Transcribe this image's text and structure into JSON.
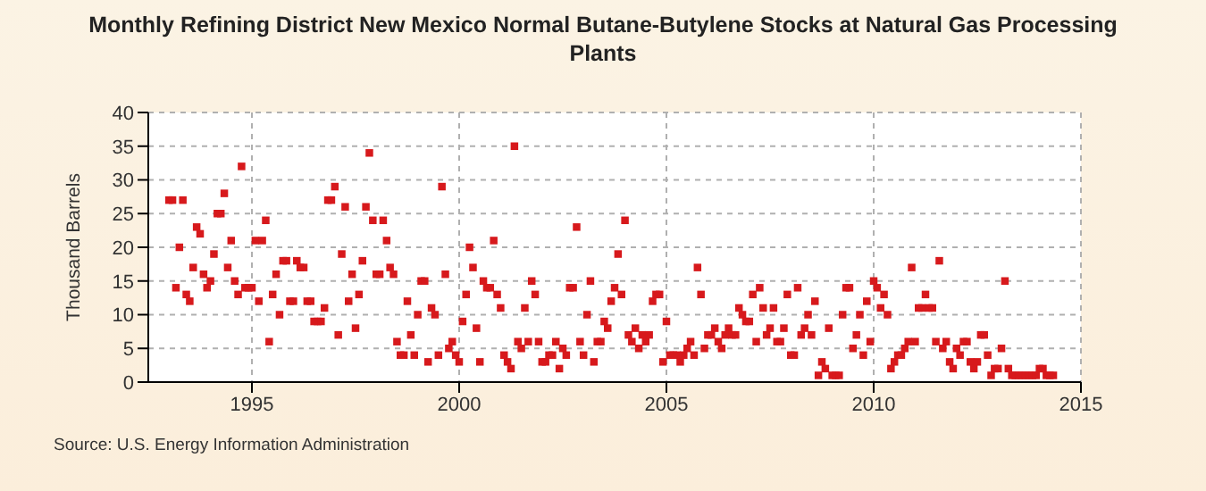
{
  "chart_data": {
    "type": "scatter",
    "title": "Monthly Refining District New Mexico Normal Butane-Butylene Stocks at Natural Gas Processing Plants",
    "ylabel": "Thousand Barrels",
    "annotations": [
      "Source: U.S. Energy Information Administration"
    ],
    "x": [
      "1993-01",
      "1993-02",
      "1993-03",
      "1993-04",
      "1993-05",
      "1993-06",
      "1993-07",
      "1993-08",
      "1993-09",
      "1993-10",
      "1993-11",
      "1993-12",
      "1994-01",
      "1994-02",
      "1994-03",
      "1994-04",
      "1994-05",
      "1994-06",
      "1994-07",
      "1994-08",
      "1994-09",
      "1994-10",
      "1994-11",
      "1994-12",
      "1995-01",
      "1995-02",
      "1995-03",
      "1995-04",
      "1995-05",
      "1995-06",
      "1995-07",
      "1995-08",
      "1995-09",
      "1995-10",
      "1995-11",
      "1995-12",
      "1996-01",
      "1996-02",
      "1996-03",
      "1996-04",
      "1996-05",
      "1996-06",
      "1996-07",
      "1996-08",
      "1996-09",
      "1996-10",
      "1996-11",
      "1996-12",
      "1997-01",
      "1997-02",
      "1997-03",
      "1997-04",
      "1997-05",
      "1997-06",
      "1997-07",
      "1997-08",
      "1997-09",
      "1997-10",
      "1997-11",
      "1997-12",
      "1998-01",
      "1998-02",
      "1998-03",
      "1998-04",
      "1998-05",
      "1998-06",
      "1998-07",
      "1998-08",
      "1998-09",
      "1998-10",
      "1998-11",
      "1998-12",
      "1999-01",
      "1999-02",
      "1999-03",
      "1999-04",
      "1999-05",
      "1999-06",
      "1999-07",
      "1999-08",
      "1999-09",
      "1999-10",
      "1999-11",
      "1999-12",
      "2000-01",
      "2000-02",
      "2000-03",
      "2000-04",
      "2000-05",
      "2000-06",
      "2000-07",
      "2000-08",
      "2000-09",
      "2000-10",
      "2000-11",
      "2000-12",
      "2001-01",
      "2001-02",
      "2001-03",
      "2001-04",
      "2001-05",
      "2001-06",
      "2001-07",
      "2001-08",
      "2001-09",
      "2001-10",
      "2001-11",
      "2001-12",
      "2002-01",
      "2002-02",
      "2002-03",
      "2002-04",
      "2002-05",
      "2002-06",
      "2002-07",
      "2002-08",
      "2002-09",
      "2002-10",
      "2002-11",
      "2002-12",
      "2003-01",
      "2003-02",
      "2003-03",
      "2003-04",
      "2003-05",
      "2003-06",
      "2003-07",
      "2003-08",
      "2003-09",
      "2003-10",
      "2003-11",
      "2003-12",
      "2004-01",
      "2004-02",
      "2004-03",
      "2004-04",
      "2004-05",
      "2004-06",
      "2004-07",
      "2004-08",
      "2004-09",
      "2004-10",
      "2004-11",
      "2004-12",
      "2005-01",
      "2005-02",
      "2005-03",
      "2005-04",
      "2005-05",
      "2005-06",
      "2005-07",
      "2005-08",
      "2005-09",
      "2005-10",
      "2005-11",
      "2005-12",
      "2006-01",
      "2006-02",
      "2006-03",
      "2006-04",
      "2006-05",
      "2006-06",
      "2006-07",
      "2006-08",
      "2006-09",
      "2006-10",
      "2006-11",
      "2006-12",
      "2007-01",
      "2007-02",
      "2007-03",
      "2007-04",
      "2007-05",
      "2007-06",
      "2007-07",
      "2007-08",
      "2007-09",
      "2007-10",
      "2007-11",
      "2007-12",
      "2008-01",
      "2008-02",
      "2008-03",
      "2008-04",
      "2008-05",
      "2008-06",
      "2008-07",
      "2008-08",
      "2008-09",
      "2008-10",
      "2008-11",
      "2008-12",
      "2009-01",
      "2009-02",
      "2009-03",
      "2009-04",
      "2009-05",
      "2009-06",
      "2009-07",
      "2009-08",
      "2009-09",
      "2009-10",
      "2009-11",
      "2009-12",
      "2010-01",
      "2010-02",
      "2010-03",
      "2010-04",
      "2010-05",
      "2010-06",
      "2010-07",
      "2010-08",
      "2010-09",
      "2010-10",
      "2010-11",
      "2010-12",
      "2011-01",
      "2011-02",
      "2011-03",
      "2011-04",
      "2011-05",
      "2011-06",
      "2011-07",
      "2011-08",
      "2011-09",
      "2011-10",
      "2011-11",
      "2011-12",
      "2012-01",
      "2012-02",
      "2012-03",
      "2012-04",
      "2012-05",
      "2012-06",
      "2012-07",
      "2012-08",
      "2012-09",
      "2012-10",
      "2012-11",
      "2012-12",
      "2013-01",
      "2013-02",
      "2013-03",
      "2013-04",
      "2013-05",
      "2013-06",
      "2013-07",
      "2013-08",
      "2013-09",
      "2013-10",
      "2013-11",
      "2013-12",
      "2014-01",
      "2014-02",
      "2014-03",
      "2014-04",
      "2014-05"
    ],
    "series": [
      {
        "color": "#d7191c",
        "values": [
          27,
          27,
          14,
          20,
          27,
          13,
          12,
          17,
          23,
          22,
          16,
          14,
          15,
          19,
          25,
          25,
          28,
          17,
          21,
          15,
          13,
          32,
          14,
          14,
          14,
          21,
          12,
          21,
          24,
          6,
          13,
          16,
          10,
          18,
          18,
          12,
          12,
          18,
          17,
          17,
          12,
          12,
          9,
          9,
          9,
          11,
          27,
          27,
          29,
          7,
          19,
          26,
          12,
          16,
          8,
          13,
          18,
          26,
          34,
          24,
          16,
          16,
          24,
          21,
          17,
          16,
          6,
          4,
          4,
          12,
          7,
          4,
          10,
          15,
          15,
          3,
          11,
          10,
          4,
          29,
          16,
          5,
          6,
          4,
          3,
          9,
          13,
          20,
          17,
          8,
          3,
          15,
          14,
          14,
          21,
          13,
          11,
          4,
          3,
          2,
          35,
          6,
          5,
          11,
          6,
          15,
          13,
          6,
          3,
          3,
          4,
          4,
          6,
          2,
          5,
          4,
          14,
          14,
          23,
          6,
          4,
          10,
          15,
          3,
          6,
          6,
          9,
          8,
          12,
          14,
          19,
          13,
          24,
          7,
          6,
          8,
          5,
          7,
          6,
          7,
          12,
          13,
          13,
          3,
          9,
          4,
          4,
          4,
          3,
          4,
          5,
          6,
          4,
          17,
          13,
          5,
          7,
          7,
          8,
          6,
          5,
          7,
          8,
          7,
          7,
          11,
          10,
          9,
          9,
          13,
          6,
          14,
          11,
          7,
          8,
          11,
          6,
          6,
          8,
          13,
          4,
          4,
          14,
          7,
          8,
          10,
          7,
          12,
          1,
          3,
          2,
          8,
          1,
          1,
          1,
          10,
          14,
          14,
          5,
          7,
          10,
          4,
          12,
          6,
          15,
          14,
          11,
          13,
          10,
          2,
          3,
          4,
          4,
          5,
          6,
          17,
          6,
          11,
          11,
          13,
          11,
          11,
          6,
          18,
          5,
          6,
          3,
          2,
          5,
          4,
          6,
          6,
          3,
          2,
          3,
          7,
          7,
          4,
          1,
          2,
          2,
          5,
          15,
          2,
          1,
          1,
          1,
          1,
          1,
          1,
          1,
          1,
          2,
          2,
          1,
          1,
          1
        ]
      }
    ],
    "xlim": [
      "1992-07",
      "2015"
    ],
    "xticks": [
      "1995",
      "2000",
      "2005",
      "2010",
      "2015"
    ],
    "ylim": [
      0,
      40
    ],
    "yticks": [
      0,
      5,
      10,
      15,
      20,
      25,
      30,
      35,
      40
    ],
    "grid": true,
    "marker": "square"
  }
}
